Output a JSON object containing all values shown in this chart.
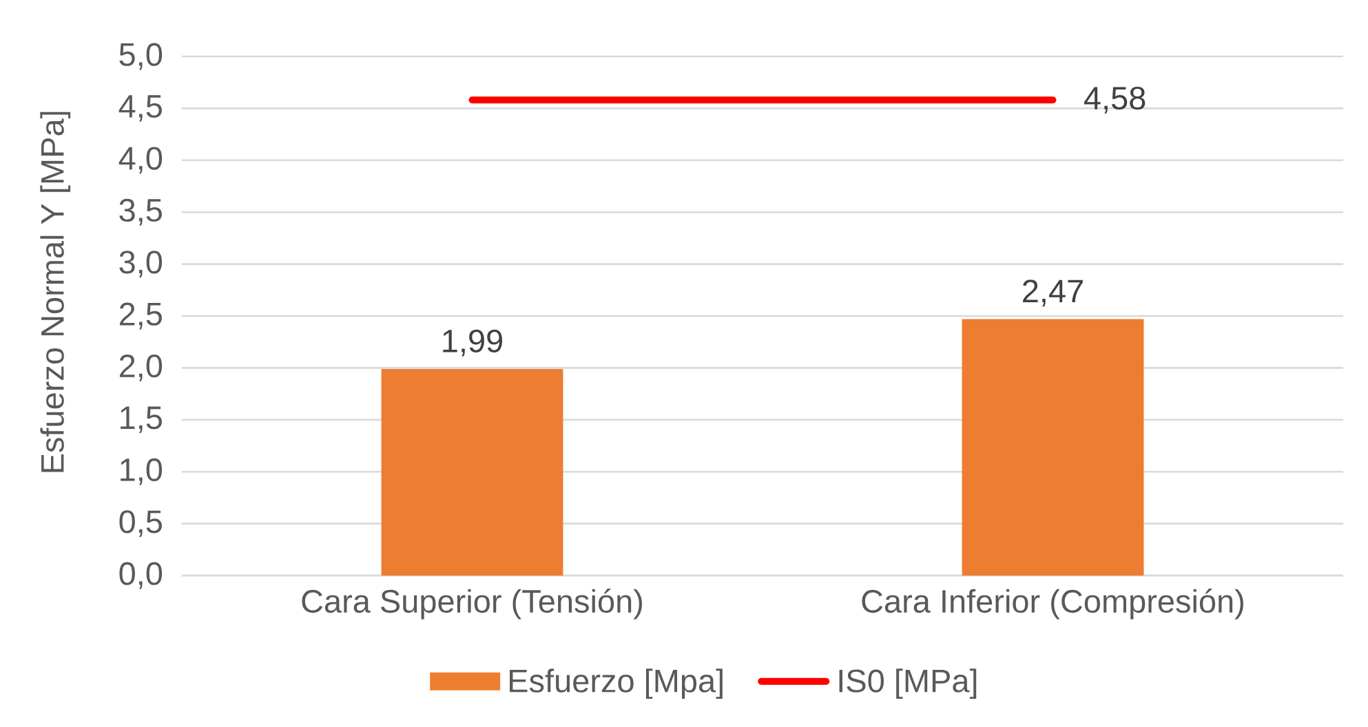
{
  "chart_data": {
    "type": "bar",
    "ylabel": "Esfuerzo Normal Y [MPa]",
    "categories": [
      "Cara Superior (Tensión)",
      "Cara Inferior (Compresión)"
    ],
    "series": [
      {
        "name": "Esfuerzo [Mpa]",
        "color": "#ed7d31",
        "values": [
          1.99,
          2.47
        ],
        "value_labels": [
          "1,99",
          "2,47"
        ]
      },
      {
        "name": "IS0 [MPa]",
        "type": "line",
        "line_style": "solid",
        "color": "#ff0000",
        "values": [
          4.58,
          4.58
        ],
        "value_labels": [
          null,
          "4,58"
        ]
      }
    ],
    "ylim": [
      0,
      5
    ],
    "yticks": [
      {
        "value": 0,
        "label": "0,0"
      },
      {
        "value": 0.5,
        "label": "0,5"
      },
      {
        "value": 1,
        "label": "1,0"
      },
      {
        "value": 1.5,
        "label": "1,5"
      },
      {
        "value": 2,
        "label": "2,0"
      },
      {
        "value": 2.5,
        "label": "2,5"
      },
      {
        "value": 3,
        "label": "3,0"
      },
      {
        "value": 3.5,
        "label": "3,5"
      },
      {
        "value": 4,
        "label": "4,0"
      },
      {
        "value": 4.5,
        "label": "4,5"
      },
      {
        "value": 5,
        "label": "5,0"
      }
    ],
    "grid": "y",
    "legend": "bottom"
  }
}
